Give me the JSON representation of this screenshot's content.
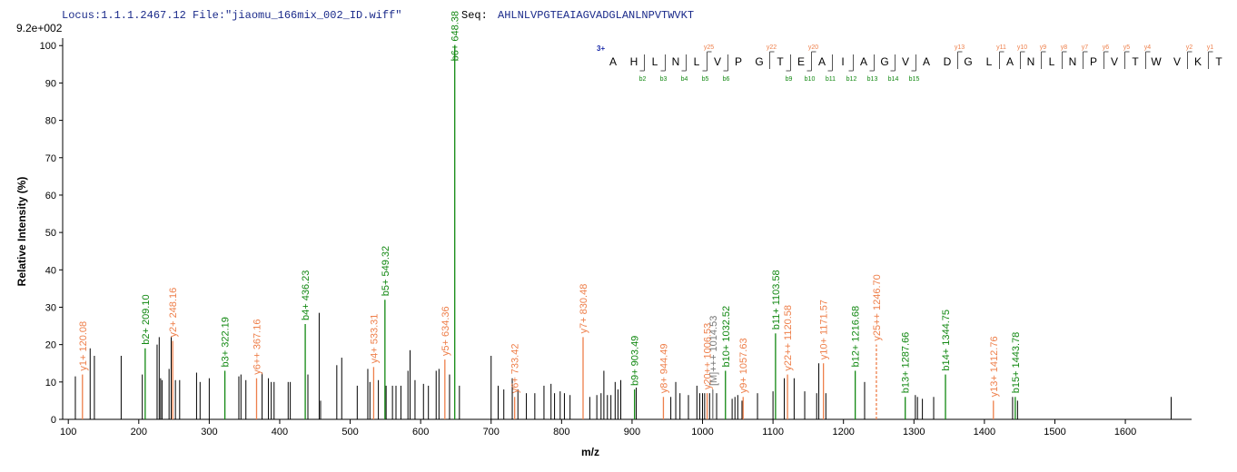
{
  "chart_data": {
    "type": "spectrum",
    "header": "Locus:1.1.1.2467.12 File:\"jiaomu_166mix_002_ID.wiff\"",
    "seq_label": "Seq:",
    "sequence": "AHLNLVPGTEAIAGVADGLANLNPVTWVKT",
    "max_intensity_label": "9.2e+002",
    "ylabel": "Relative   Intensity (%)",
    "xlabel": "m/z",
    "xlim": [
      92,
      1694
    ],
    "ylim": [
      0,
      102
    ],
    "xticks": [
      100,
      200,
      300,
      400,
      500,
      600,
      700,
      800,
      900,
      1000,
      1100,
      1200,
      1300,
      1400,
      1500,
      1600
    ],
    "yticks": [
      0,
      10,
      20,
      30,
      40,
      50,
      60,
      70,
      80,
      90,
      100
    ],
    "peak_color": "#000000",
    "peaks": {
      "x": [
        110,
        131,
        137,
        175,
        205,
        226,
        229,
        231,
        233,
        243,
        246,
        252,
        258,
        282,
        287,
        300,
        342,
        345,
        352,
        375,
        384,
        388,
        392,
        412,
        415,
        440,
        456,
        458,
        481,
        488,
        510,
        525,
        528,
        540,
        551,
        560,
        565,
        572,
        582,
        585,
        592,
        604,
        611,
        622,
        626,
        641,
        655,
        700,
        710,
        718,
        730,
        738,
        750,
        762,
        775,
        785,
        790,
        798,
        804,
        812,
        840,
        850,
        856,
        860,
        865,
        870,
        876,
        880,
        884,
        906,
        955,
        962,
        968,
        980,
        992,
        996,
        1000,
        1003,
        1010,
        1020,
        1042,
        1046,
        1050,
        1056,
        1078,
        1100,
        1116,
        1130,
        1145,
        1162,
        1165,
        1175,
        1230,
        1302,
        1305,
        1312,
        1328,
        1440,
        1447,
        1665
      ],
      "values": [
        11.5,
        19,
        17,
        17,
        12,
        20,
        22,
        11,
        10.5,
        13.5,
        22,
        10.5,
        10.5,
        12.5,
        10,
        11,
        11.5,
        12,
        10.5,
        12.5,
        11,
        10,
        10,
        10,
        10,
        12,
        28.5,
        5,
        14.5,
        16.5,
        9,
        13.5,
        10,
        10.5,
        9,
        9,
        9,
        9,
        13,
        18.5,
        10.5,
        9.5,
        9,
        13,
        13.5,
        12,
        9,
        17,
        9,
        8,
        11,
        8,
        7,
        7,
        9,
        9.5,
        7,
        7.5,
        7,
        6.5,
        6,
        6.5,
        7,
        13,
        6.5,
        6.5,
        10,
        8,
        10.5,
        8.5,
        6,
        10,
        7,
        6.5,
        9,
        7,
        7,
        7,
        7,
        7,
        5.5,
        6,
        6.5,
        5,
        7,
        7.5,
        11,
        11,
        7.5,
        7,
        15,
        7,
        10,
        6.5,
        6,
        5.5,
        6,
        6,
        5,
        6
      ]
    },
    "annotated_peaks": [
      {
        "label": "y1+ 120.08",
        "x": 120.08,
        "value": 12,
        "color": "#ee7f4a"
      },
      {
        "label": "b2+ 209.10",
        "x": 209.1,
        "value": 19,
        "color": "#118811"
      },
      {
        "label": "y2+ 248.16",
        "x": 248.16,
        "value": 21,
        "color": "#ee7f4a"
      },
      {
        "label": "b3+ 322.19",
        "x": 322.19,
        "value": 13,
        "color": "#118811"
      },
      {
        "label": "y6++ 367.16",
        "x": 367.16,
        "value": 11,
        "color": "#ee7f4a"
      },
      {
        "label": "b4+ 436.23",
        "x": 436.23,
        "value": 25.5,
        "color": "#118811"
      },
      {
        "label": "y4+ 533.31",
        "x": 533.31,
        "value": 14,
        "color": "#ee7f4a"
      },
      {
        "label": "b5+ 549.32",
        "x": 549.32,
        "value": 32,
        "color": "#118811"
      },
      {
        "label": "y5+ 634.36",
        "x": 634.36,
        "value": 16,
        "color": "#ee7f4a"
      },
      {
        "label": "b6+ 648.38",
        "x": 648.38,
        "value": 100,
        "color": "#118811"
      },
      {
        "label": "y6+ 733.42",
        "x": 733.42,
        "value": 6,
        "color": "#ee7f4a"
      },
      {
        "label": "y7+ 830.48",
        "x": 830.48,
        "value": 22,
        "color": "#ee7f4a"
      },
      {
        "label": "b9+ 903.49",
        "x": 903.49,
        "value": 8,
        "color": "#118811"
      },
      {
        "label": "y8+ 944.49",
        "x": 944.49,
        "value": 6,
        "color": "#ee7f4a"
      },
      {
        "label": "y20++ 1006.53",
        "x": 1006.53,
        "value": 7,
        "color": "#ee7f4a"
      },
      {
        "label": "[M]+++ 1014.53",
        "x": 1014.53,
        "value": 8,
        "color": "#777777"
      },
      {
        "label": "b10+ 1032.52",
        "x": 1032.52,
        "value": 13,
        "color": "#118811"
      },
      {
        "label": "y9+ 1057.63",
        "x": 1057.63,
        "value": 6,
        "color": "#ee7f4a"
      },
      {
        "label": "b11+ 1103.58",
        "x": 1103.58,
        "value": 23,
        "color": "#118811"
      },
      {
        "label": "y22++ 1120.58",
        "x": 1120.58,
        "value": 12,
        "color": "#ee7f4a"
      },
      {
        "label": "y10+ 1171.57",
        "x": 1171.57,
        "value": 15,
        "color": "#ee7f4a"
      },
      {
        "label": "b12+ 1216.68",
        "x": 1216.68,
        "value": 13,
        "color": "#118811"
      },
      {
        "label": "y25++ 1246.70",
        "x": 1246.7,
        "value": 20,
        "color": "#ee7f4a",
        "dashed": true
      },
      {
        "label": "b13+ 1287.66",
        "x": 1287.66,
        "value": 6,
        "color": "#118811"
      },
      {
        "label": "b14+ 1344.75",
        "x": 1344.75,
        "value": 12,
        "color": "#118811"
      },
      {
        "label": "y13+ 1412.76",
        "x": 1412.76,
        "value": 5,
        "color": "#ee7f4a"
      },
      {
        "label": "b15+ 1443.78",
        "x": 1443.78,
        "value": 6,
        "color": "#118811"
      }
    ],
    "fragment_map": {
      "charge": "3+",
      "residues": [
        "A",
        "H",
        "L",
        "N",
        "L",
        "V",
        "P",
        "G",
        "T",
        "E",
        "A",
        "I",
        "A",
        "G",
        "V",
        "A",
        "D",
        "G",
        "L",
        "A",
        "N",
        "L",
        "N",
        "P",
        "V",
        "T",
        "W",
        "V",
        "K",
        "T"
      ],
      "y_ions": [
        "y25",
        "y22",
        "y20",
        "y13",
        "y11",
        "y10",
        "y9",
        "y8",
        "y7",
        "y6",
        "y5",
        "y4",
        "y2",
        "y1"
      ],
      "b_ions": [
        "b2",
        "b3",
        "b4",
        "b5",
        "b6",
        "b9",
        "b10",
        "b11",
        "b12",
        "b13",
        "b14",
        "b15"
      ],
      "y_color": "#ee7f4a",
      "b_color": "#118811"
    }
  }
}
